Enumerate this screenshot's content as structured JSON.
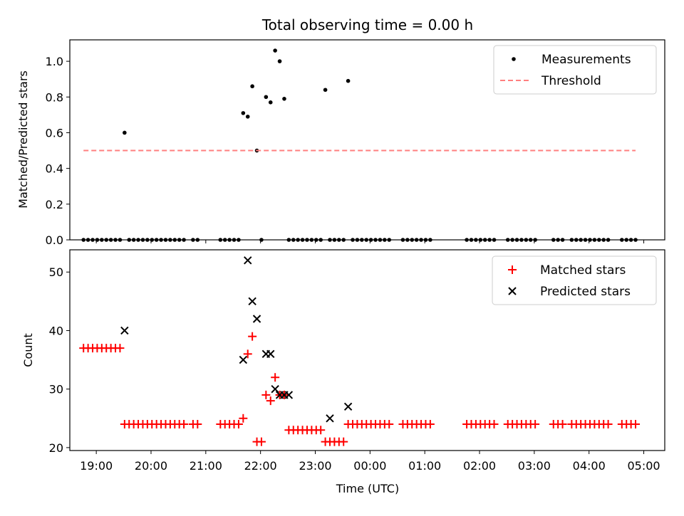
{
  "chart_data": [
    {
      "type": "scatter",
      "title": "Total observing time = 0.00 h",
      "xlabel": "",
      "ylabel": "Matched/Predicted stars",
      "xlim": [
        "18:31",
        "05:23"
      ],
      "ylim": [
        0,
        1.12
      ],
      "yticks": [
        "0.0",
        "0.2",
        "0.4",
        "0.6",
        "0.8",
        "1.0"
      ],
      "xticks": [
        "19:00",
        "20:00",
        "21:00",
        "22:00",
        "23:00",
        "00:00",
        "01:00",
        "02:00",
        "03:00",
        "04:00",
        "05:00"
      ],
      "grid": false,
      "legend": "top-right",
      "series": [
        {
          "name": "Measurements",
          "color": "#000000",
          "marker": "dot",
          "x": [
            "18:46",
            "18:51",
            "18:56",
            "19:01",
            "19:06",
            "19:11",
            "19:16",
            "19:21",
            "19:26",
            "19:31",
            "19:36",
            "19:41",
            "19:46",
            "19:51",
            "19:56",
            "20:01",
            "20:06",
            "20:11",
            "20:16",
            "20:21",
            "20:26",
            "20:31",
            "20:36",
            "20:46",
            "20:51",
            "21:16",
            "21:21",
            "21:26",
            "21:31",
            "21:36",
            "21:41",
            "21:46",
            "21:51",
            "21:56",
            "22:01",
            "22:06",
            "22:11",
            "22:16",
            "22:21",
            "22:26",
            "22:31",
            "22:36",
            "22:41",
            "22:46",
            "22:51",
            "22:56",
            "23:01",
            "23:06",
            "23:11",
            "23:16",
            "23:21",
            "23:26",
            "23:31",
            "23:36",
            "23:41",
            "23:46",
            "23:51",
            "23:56",
            "00:01",
            "00:06",
            "00:11",
            "00:16",
            "00:21",
            "00:36",
            "00:41",
            "00:46",
            "00:51",
            "00:56",
            "01:01",
            "01:06",
            "01:46",
            "01:51",
            "01:56",
            "02:01",
            "02:06",
            "02:11",
            "02:16",
            "02:31",
            "02:36",
            "02:41",
            "02:46",
            "02:51",
            "02:56",
            "03:01",
            "03:21",
            "03:26",
            "03:31",
            "03:41",
            "03:46",
            "03:51",
            "03:56",
            "04:01",
            "04:06",
            "04:11",
            "04:16",
            "04:21",
            "04:36",
            "04:41",
            "04:46",
            "04:51"
          ],
          "y": [
            0,
            0,
            0,
            0,
            0,
            0,
            0,
            0,
            0,
            0.6,
            0,
            0,
            0,
            0,
            0,
            0,
            0,
            0,
            0,
            0,
            0,
            0,
            0,
            0,
            0,
            0,
            0,
            0,
            0,
            0,
            0.71,
            0.69,
            0.86,
            0.5,
            0,
            0.8,
            0.77,
            1.06,
            1.0,
            0.79,
            0,
            0,
            0,
            0,
            0,
            0,
            0,
            0,
            0.84,
            0,
            0,
            0,
            0,
            0.89,
            0,
            0,
            0,
            0,
            0,
            0,
            0,
            0,
            0,
            0,
            0,
            0,
            0,
            0,
            0,
            0,
            0,
            0,
            0,
            0,
            0,
            0,
            0,
            0,
            0,
            0,
            0,
            0,
            0,
            0,
            0,
            0,
            0,
            0,
            0,
            0,
            0,
            0,
            0,
            0,
            0,
            0,
            0,
            0,
            0,
            0
          ]
        },
        {
          "name": "Threshold",
          "color": "#ff7f7f",
          "style": "dashed",
          "x": [
            "18:46",
            "04:51"
          ],
          "y": [
            0.5,
            0.5
          ]
        }
      ]
    },
    {
      "type": "scatter",
      "title": "",
      "xlabel": "Time (UTC)",
      "ylabel": "Count",
      "xlim": [
        "18:31",
        "05:23"
      ],
      "ylim": [
        19.5,
        53.8
      ],
      "yticks": [
        "20",
        "30",
        "40",
        "50"
      ],
      "xticks": [
        "19:00",
        "20:00",
        "21:00",
        "22:00",
        "23:00",
        "00:00",
        "01:00",
        "02:00",
        "03:00",
        "04:00",
        "05:00"
      ],
      "grid": false,
      "legend": "top-right",
      "series": [
        {
          "name": "Matched stars",
          "color": "#ff0000",
          "marker": "plus",
          "x": [
            "18:46",
            "18:51",
            "18:56",
            "19:01",
            "19:06",
            "19:11",
            "19:16",
            "19:21",
            "19:26",
            "19:31",
            "19:36",
            "19:41",
            "19:46",
            "19:51",
            "19:56",
            "20:01",
            "20:06",
            "20:11",
            "20:16",
            "20:21",
            "20:26",
            "20:31",
            "20:36",
            "20:46",
            "20:51",
            "21:16",
            "21:21",
            "21:26",
            "21:31",
            "21:36",
            "21:41",
            "21:46",
            "21:51",
            "21:56",
            "22:01",
            "22:06",
            "22:11",
            "22:16",
            "22:21",
            "22:26",
            "22:31",
            "22:36",
            "22:41",
            "22:46",
            "22:51",
            "22:56",
            "23:01",
            "23:06",
            "23:11",
            "23:16",
            "23:21",
            "23:26",
            "23:31",
            "23:36",
            "23:41",
            "23:46",
            "23:51",
            "23:56",
            "00:01",
            "00:06",
            "00:11",
            "00:16",
            "00:21",
            "00:36",
            "00:41",
            "00:46",
            "00:51",
            "00:56",
            "01:01",
            "01:06",
            "01:46",
            "01:51",
            "01:56",
            "02:01",
            "02:06",
            "02:11",
            "02:16",
            "02:31",
            "02:36",
            "02:41",
            "02:46",
            "02:51",
            "02:56",
            "03:01",
            "03:21",
            "03:26",
            "03:31",
            "03:41",
            "03:46",
            "03:51",
            "03:56",
            "04:01",
            "04:06",
            "04:11",
            "04:16",
            "04:21",
            "04:36",
            "04:41",
            "04:46",
            "04:51"
          ],
          "y": [
            37,
            37,
            37,
            37,
            37,
            37,
            37,
            37,
            37,
            24,
            24,
            24,
            24,
            24,
            24,
            24,
            24,
            24,
            24,
            24,
            24,
            24,
            24,
            24,
            24,
            24,
            24,
            24,
            24,
            24,
            25,
            36,
            39,
            21,
            21,
            29,
            28,
            32,
            29,
            29,
            23,
            23,
            23,
            23,
            23,
            23,
            23,
            23,
            21,
            21,
            21,
            21,
            21,
            24,
            24,
            24,
            24,
            24,
            24,
            24,
            24,
            24,
            24,
            24,
            24,
            24,
            24,
            24,
            24,
            24,
            24,
            24,
            24,
            24,
            24,
            24,
            24,
            24,
            24,
            24,
            24,
            24,
            24,
            24,
            24,
            24,
            24,
            24,
            24,
            24,
            24,
            24,
            24,
            24,
            24,
            24,
            24,
            24,
            24,
            24
          ]
        },
        {
          "name": "Predicted stars",
          "color": "#000000",
          "marker": "cross",
          "x": [
            "19:31",
            "21:41",
            "21:46",
            "21:51",
            "21:56",
            "22:06",
            "22:11",
            "22:16",
            "22:21",
            "22:26",
            "22:31",
            "23:16",
            "23:36"
          ],
          "y": [
            40,
            35,
            52,
            45,
            42,
            36,
            36,
            30,
            29,
            29,
            29,
            25,
            27
          ]
        }
      ]
    }
  ]
}
